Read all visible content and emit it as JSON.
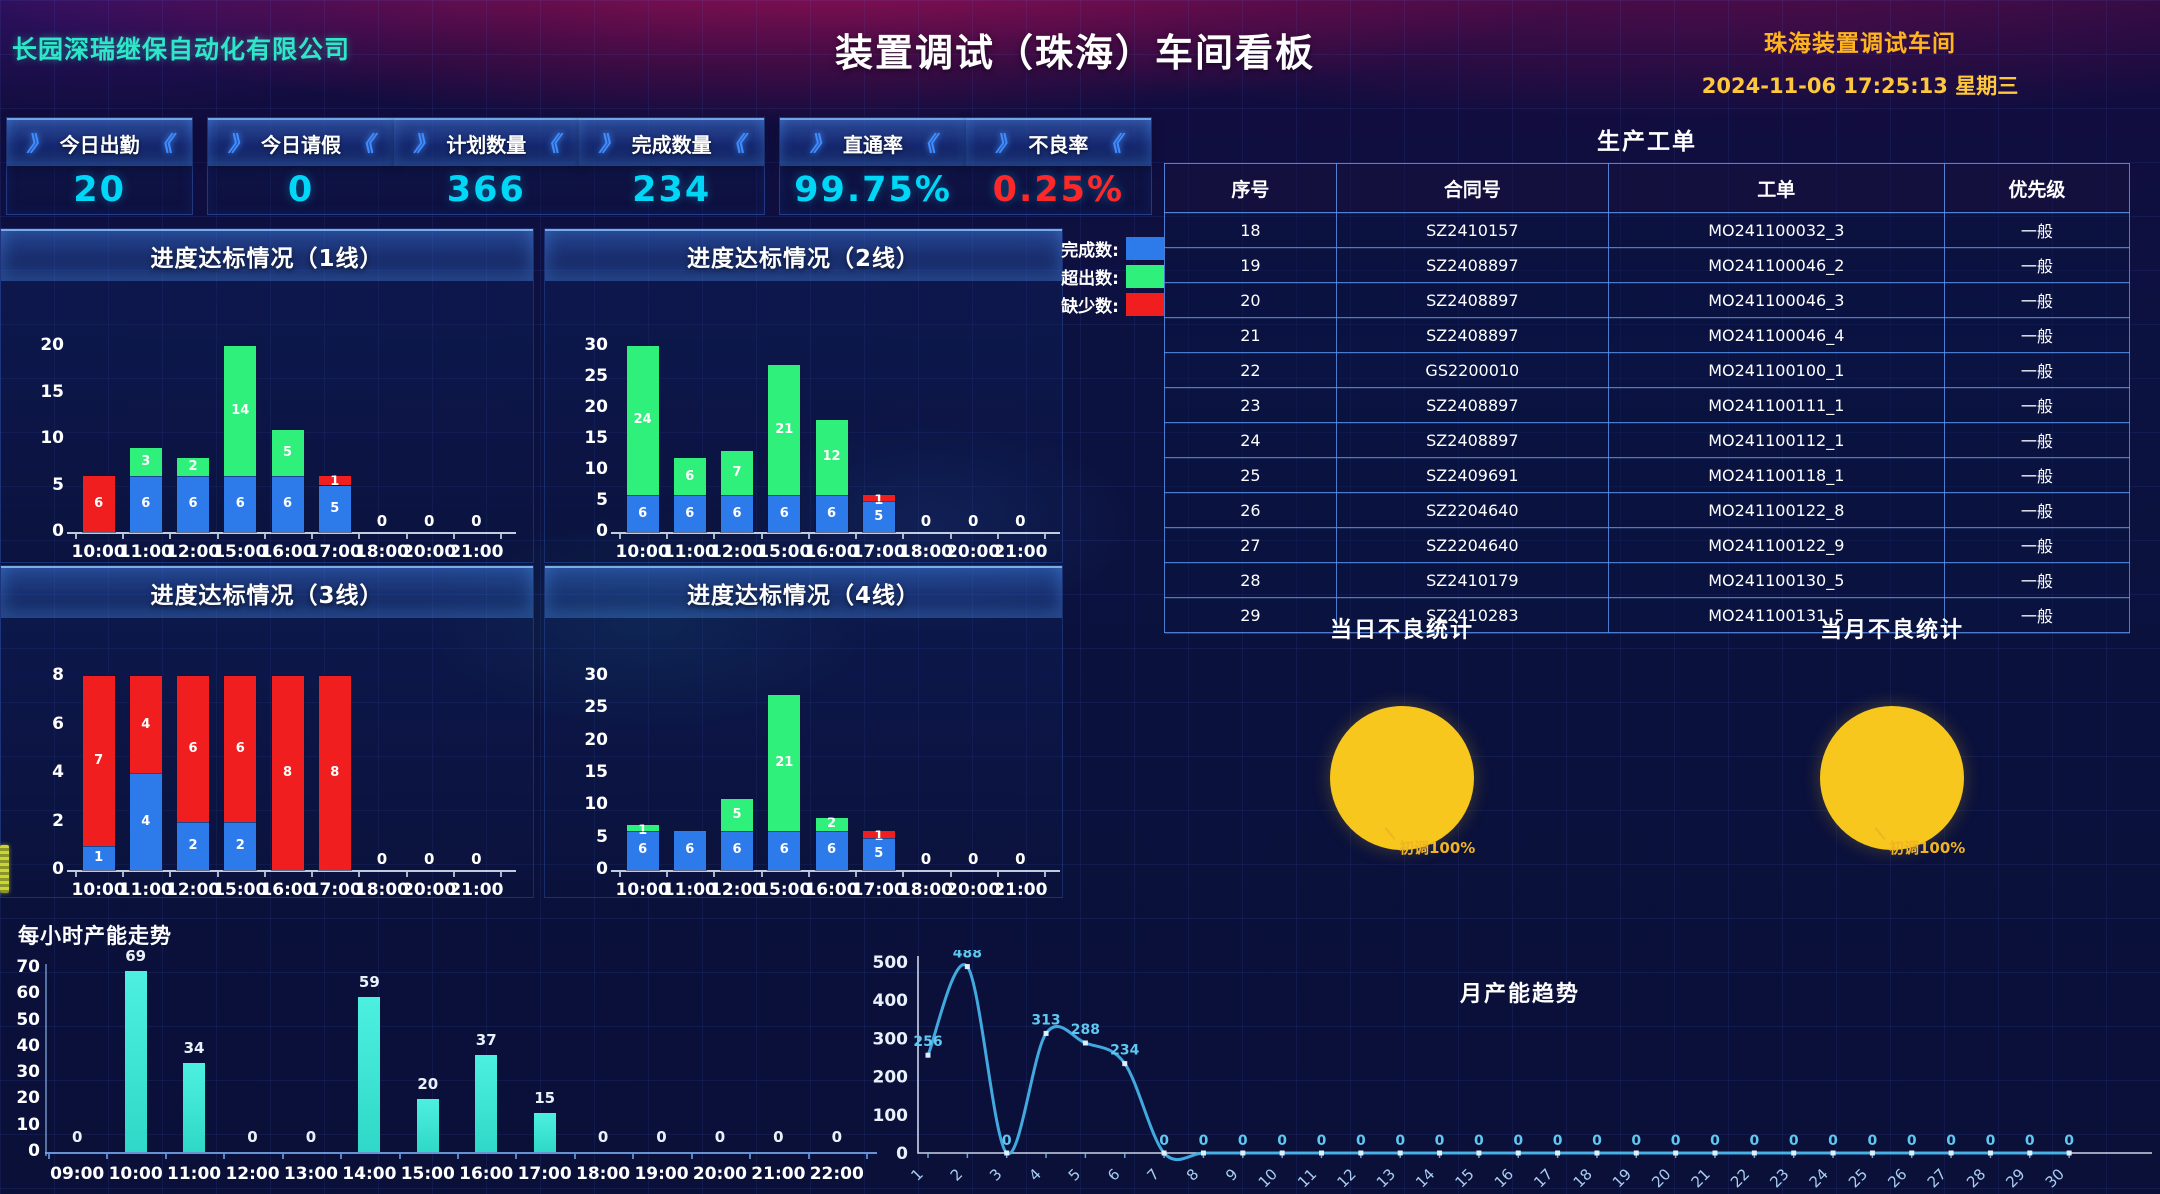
{
  "header": {
    "company": "长园深瑞继保自动化有限公司",
    "title": "装置调试（珠海）车间看板",
    "workshop": "珠海装置调试车间",
    "datetime": "2024-11-06 17:25:13 星期三"
  },
  "kpi": {
    "deco_open": "》",
    "deco_close": "《",
    "groups": [
      {
        "cells": [
          {
            "label": "今日出勤",
            "value": "20",
            "color": "#00d7f7"
          }
        ]
      },
      {
        "cells": [
          {
            "label": "今日请假",
            "value": "0",
            "color": "#00d7f7"
          },
          {
            "label": "计划数量",
            "value": "366",
            "color": "#00d7f7"
          },
          {
            "label": "完成数量",
            "value": "234",
            "color": "#00d7f7"
          }
        ]
      },
      {
        "cells": [
          {
            "label": "直通率",
            "value": "99.75%",
            "color": "#00d7f7"
          },
          {
            "label": "不良率",
            "value": "0.25%",
            "color": "#ff2828"
          }
        ]
      }
    ]
  },
  "legend": {
    "items": [
      {
        "label": "完成数:",
        "color": "#2d7bea"
      },
      {
        "label": "超出数:",
        "color": "#2ef07a"
      },
      {
        "label": "缺少数:",
        "color": "#f01e1e"
      }
    ]
  },
  "order_table": {
    "title": "生产工单",
    "columns": [
      "序号",
      "合同号",
      "工单",
      "优先级"
    ],
    "rows": [
      [
        "18",
        "SZ2410157",
        "MO241100032_3",
        "一般"
      ],
      [
        "19",
        "SZ2408897",
        "MO241100046_2",
        "一般"
      ],
      [
        "20",
        "SZ2408897",
        "MO241100046_3",
        "一般"
      ],
      [
        "21",
        "SZ2408897",
        "MO241100046_4",
        "一般"
      ],
      [
        "22",
        "GS2200010",
        "MO241100100_1",
        "一般"
      ],
      [
        "23",
        "SZ2408897",
        "MO241100111_1",
        "一般"
      ],
      [
        "24",
        "SZ2408897",
        "MO241100112_1",
        "一般"
      ],
      [
        "25",
        "SZ2409691",
        "MO241100118_1",
        "一般"
      ],
      [
        "26",
        "SZ2204640",
        "MO241100122_8",
        "一般"
      ],
      [
        "27",
        "SZ2204640",
        "MO241100122_9",
        "一般"
      ],
      [
        "28",
        "SZ2410179",
        "MO241100130_5",
        "一般"
      ],
      [
        "29",
        "SZ2410283",
        "MO241100131_5",
        "一般"
      ]
    ]
  },
  "chart_data": [
    {
      "id": "line1",
      "type": "bar",
      "stacked": true,
      "title": "进度达标情况（1线）",
      "categories": [
        "10:00",
        "11:00",
        "12:00",
        "15:00",
        "16:00",
        "17:00",
        "18:00",
        "20:00",
        "21:00"
      ],
      "series": [
        {
          "name": "完成数",
          "color": "#2d7bea",
          "values": [
            0,
            6,
            6,
            6,
            6,
            5,
            0,
            0,
            0
          ]
        },
        {
          "name": "超出数",
          "color": "#2ef07a",
          "values": [
            0,
            3,
            2,
            14,
            5,
            0,
            0,
            0,
            0
          ]
        },
        {
          "name": "缺少数",
          "color": "#f01e1e",
          "values": [
            6,
            0,
            0,
            0,
            0,
            1,
            0,
            0,
            0
          ]
        }
      ],
      "ylim": [
        0,
        20
      ],
      "yticks": [
        0,
        5,
        10,
        15,
        20
      ]
    },
    {
      "id": "line2",
      "type": "bar",
      "stacked": true,
      "title": "进度达标情况（2线）",
      "categories": [
        "10:00",
        "11:00",
        "12:00",
        "15:00",
        "16:00",
        "17:00",
        "18:00",
        "20:00",
        "21:00"
      ],
      "series": [
        {
          "name": "完成数",
          "color": "#2d7bea",
          "values": [
            6,
            6,
            6,
            6,
            6,
            5,
            0,
            0,
            0
          ]
        },
        {
          "name": "超出数",
          "color": "#2ef07a",
          "values": [
            24,
            6,
            7,
            21,
            12,
            0,
            0,
            0,
            0
          ]
        },
        {
          "name": "缺少数",
          "color": "#f01e1e",
          "values": [
            0,
            0,
            0,
            0,
            0,
            1,
            0,
            0,
            0
          ]
        }
      ],
      "ylim": [
        0,
        30
      ],
      "yticks": [
        0,
        5,
        10,
        15,
        20,
        25,
        30
      ]
    },
    {
      "id": "line3",
      "type": "bar",
      "stacked": true,
      "title": "进度达标情况（3线）",
      "categories": [
        "10:00",
        "11:00",
        "12:00",
        "15:00",
        "16:00",
        "17:00",
        "18:00",
        "20:00",
        "21:00"
      ],
      "series": [
        {
          "name": "完成数",
          "color": "#2d7bea",
          "values": [
            1,
            4,
            2,
            2,
            0,
            0,
            0,
            0,
            0
          ]
        },
        {
          "name": "超出数",
          "color": "#2ef07a",
          "values": [
            0,
            0,
            0,
            0,
            0,
            0,
            0,
            0,
            0
          ]
        },
        {
          "name": "缺少数",
          "color": "#f01e1e",
          "values": [
            7,
            4,
            6,
            6,
            8,
            8,
            0,
            0,
            0
          ]
        }
      ],
      "ylim": [
        0,
        8
      ],
      "yticks": [
        0,
        2,
        4,
        6,
        8
      ]
    },
    {
      "id": "line4",
      "type": "bar",
      "stacked": true,
      "title": "进度达标情况（4线）",
      "categories": [
        "10:00",
        "11:00",
        "12:00",
        "15:00",
        "16:00",
        "17:00",
        "18:00",
        "20:00",
        "21:00"
      ],
      "series": [
        {
          "name": "完成数",
          "color": "#2d7bea",
          "values": [
            6,
            6,
            6,
            6,
            6,
            5,
            0,
            0,
            0
          ]
        },
        {
          "name": "超出数",
          "color": "#2ef07a",
          "values": [
            1,
            0,
            5,
            21,
            2,
            0,
            0,
            0,
            0
          ]
        },
        {
          "name": "缺少数",
          "color": "#f01e1e",
          "values": [
            0,
            0,
            0,
            0,
            0,
            1,
            0,
            0,
            0
          ]
        }
      ],
      "ylim": [
        0,
        30
      ],
      "yticks": [
        0,
        5,
        10,
        15,
        20,
        25,
        30
      ]
    },
    {
      "id": "hourly",
      "type": "bar",
      "title": "每小时产能走势",
      "categories": [
        "09:00",
        "10:00",
        "11:00",
        "12:00",
        "13:00",
        "14:00",
        "15:00",
        "16:00",
        "17:00",
        "18:00",
        "19:00",
        "20:00",
        "21:00",
        "22:00"
      ],
      "values": [
        0,
        69,
        34,
        0,
        0,
        59,
        20,
        37,
        15,
        0,
        0,
        0,
        0,
        0
      ],
      "color": "#38e2d2",
      "ylim": [
        0,
        70
      ],
      "yticks": [
        0,
        10,
        20,
        30,
        40,
        50,
        60,
        70
      ]
    },
    {
      "id": "monthly",
      "type": "line",
      "title": "月产能趋势",
      "x": [
        "1",
        "2",
        "3",
        "4",
        "5",
        "6",
        "7",
        "8",
        "9",
        "10",
        "11",
        "12",
        "13",
        "14",
        "15",
        "16",
        "17",
        "18",
        "19",
        "20",
        "21",
        "22",
        "23",
        "24",
        "25",
        "26",
        "27",
        "28",
        "29",
        "30"
      ],
      "values": [
        256,
        488,
        0,
        313,
        288,
        234,
        0,
        0,
        0,
        0,
        0,
        0,
        0,
        0,
        0,
        0,
        0,
        0,
        0,
        0,
        0,
        0,
        0,
        0,
        0,
        0,
        0,
        0,
        0,
        0
      ],
      "color": "#45b2e8",
      "ylim": [
        0,
        500
      ],
      "yticks": [
        0,
        100,
        200,
        300,
        400,
        500
      ]
    },
    {
      "id": "daily_defect",
      "type": "pie",
      "title": "当日不良统计",
      "slices": [
        {
          "label": "初调",
          "value": 100,
          "color": "#f7c71e",
          "display": "初调100%"
        }
      ]
    },
    {
      "id": "monthly_defect",
      "type": "pie",
      "title": "当月不良统计",
      "slices": [
        {
          "label": "初调",
          "value": 100,
          "color": "#f7c71e",
          "display": "初调100%"
        }
      ]
    }
  ]
}
